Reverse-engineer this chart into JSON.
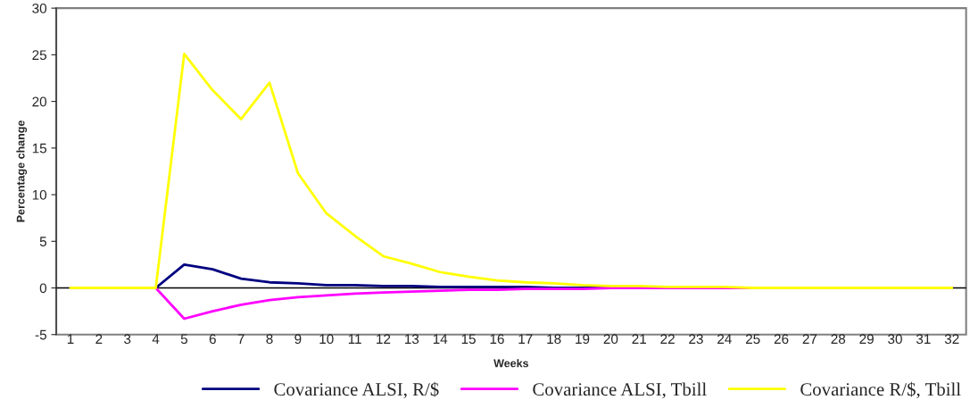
{
  "chart_data": {
    "type": "line",
    "xlabel": "Weeks",
    "ylabel": "Percentage change",
    "categories": [
      "1",
      "2",
      "3",
      "4",
      "5",
      "6",
      "7",
      "8",
      "9",
      "10",
      "11",
      "12",
      "13",
      "14",
      "15",
      "16",
      "17",
      "18",
      "19",
      "20",
      "21",
      "22",
      "23",
      "24",
      "25",
      "26",
      "27",
      "28",
      "29",
      "30",
      "31",
      "32"
    ],
    "series": [
      {
        "name": "Covariance ALSI, R/$",
        "color": "#000080",
        "values": [
          null,
          null,
          0,
          0,
          2.5,
          2.0,
          1.0,
          0.6,
          0.5,
          0.3,
          0.3,
          0.2,
          0.2,
          0.1,
          0.1,
          0.1,
          0.1,
          0.0,
          0.0,
          0.0,
          null,
          null,
          null,
          null,
          null,
          null,
          null,
          null,
          null,
          null,
          null,
          null
        ]
      },
      {
        "name": "Covariance ALSI, Tbill",
        "color": "#ff00ff",
        "values": [
          null,
          null,
          0,
          0,
          -3.3,
          -2.5,
          -1.8,
          -1.3,
          -1.0,
          -0.8,
          -0.6,
          -0.5,
          -0.4,
          -0.3,
          -0.2,
          -0.2,
          -0.1,
          -0.1,
          -0.1,
          0.0,
          0.0,
          0.0,
          0.0,
          0.0,
          0.0,
          null,
          null,
          null,
          null,
          null,
          null,
          null
        ]
      },
      {
        "name": "Covariance R/$, Tbill",
        "color": "#ffff00",
        "values": [
          0,
          0,
          0,
          0,
          25.1,
          21.2,
          18.1,
          22.0,
          12.3,
          8.0,
          5.6,
          3.4,
          2.6,
          1.7,
          1.2,
          0.8,
          0.6,
          0.5,
          0.3,
          0.2,
          0.2,
          0.1,
          0.1,
          0.1,
          0.0,
          0.0,
          0.0,
          0.0,
          0.0,
          0.0,
          0.0,
          0.0
        ]
      }
    ],
    "ylim": [
      -5,
      30
    ],
    "yticks": [
      -5,
      0,
      5,
      10,
      15,
      20,
      25,
      30
    ],
    "ref_lines": [
      {
        "axis": "y",
        "value": 0,
        "color": "#000000"
      }
    ],
    "grid": false,
    "legend": "bottom",
    "marker": "none",
    "line_style": "solid"
  }
}
